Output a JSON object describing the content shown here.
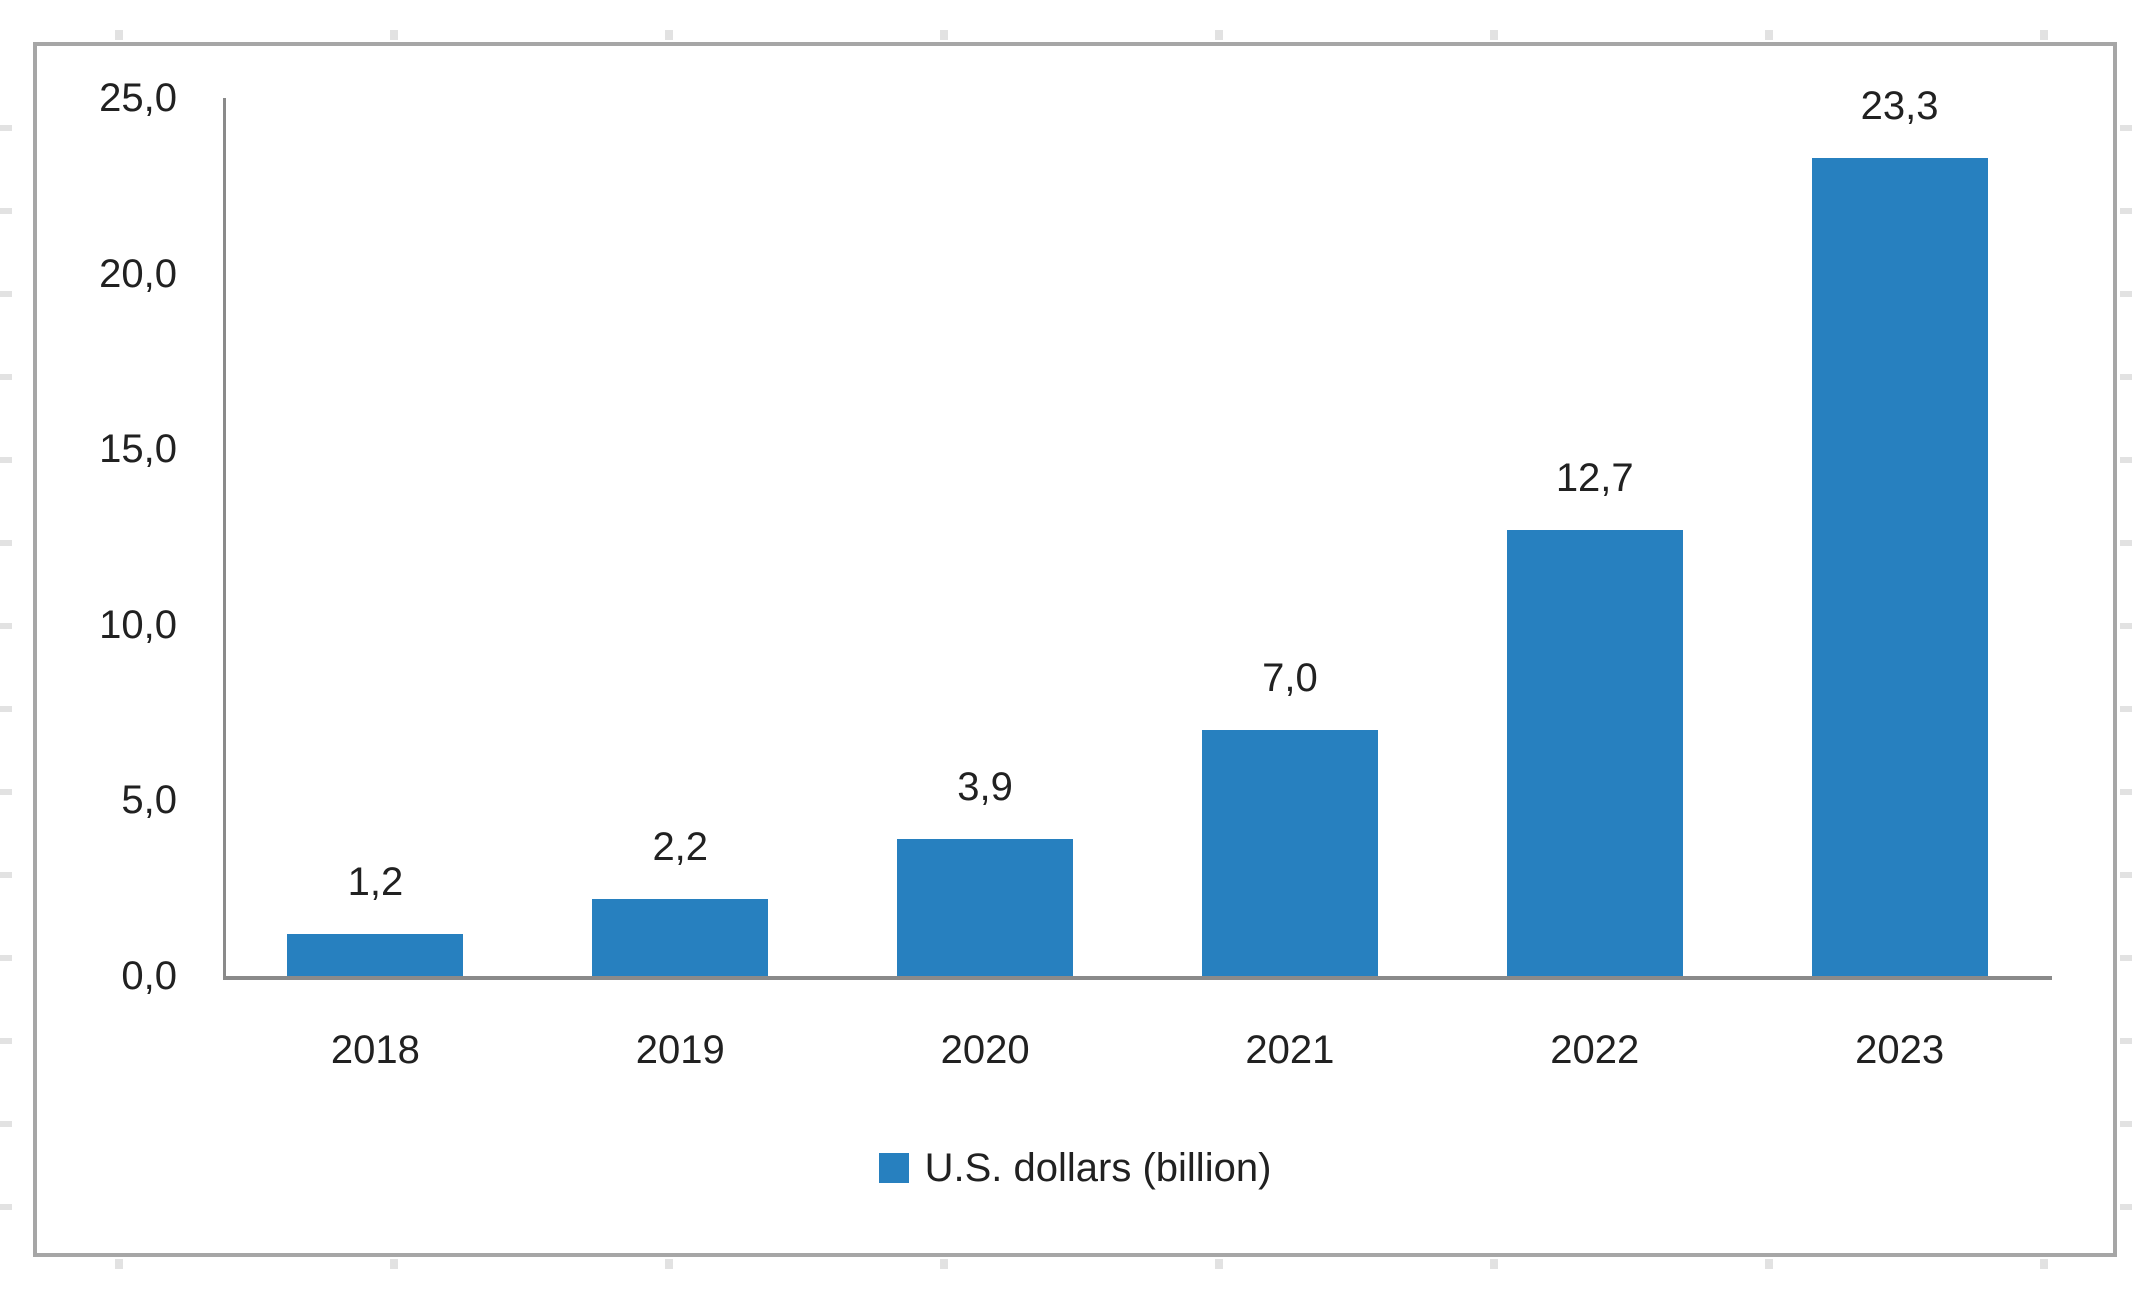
{
  "chart_data": {
    "type": "bar",
    "title": "",
    "xlabel": "",
    "ylabel": "",
    "categories": [
      "2018",
      "2019",
      "2020",
      "2021",
      "2022",
      "2023"
    ],
    "values": [
      1.2,
      2.2,
      3.9,
      7.0,
      12.7,
      23.3
    ],
    "value_labels": [
      "1,2",
      "2,2",
      "3,9",
      "7,0",
      "12,7",
      "23,3"
    ],
    "decimal_separator": ",",
    "ylim": [
      0,
      25
    ],
    "y_ticks": [
      {
        "value": 0,
        "label": "0,0"
      },
      {
        "value": 5,
        "label": "5,0"
      },
      {
        "value": 10,
        "label": "10,0"
      },
      {
        "value": 15,
        "label": "15,0"
      },
      {
        "value": 20,
        "label": "20,0"
      },
      {
        "value": 25,
        "label": "25,0"
      }
    ],
    "grid": false,
    "legend": {
      "position": "bottom",
      "label": "U.S. dollars (billion)"
    }
  },
  "colors": {
    "bar": "#2780BF",
    "axis": "#8A8A8A",
    "frame_border": "#A6A6A6",
    "text": "#212121",
    "background": "#FFFFFF",
    "grid_mark": "#E2E2E2"
  }
}
